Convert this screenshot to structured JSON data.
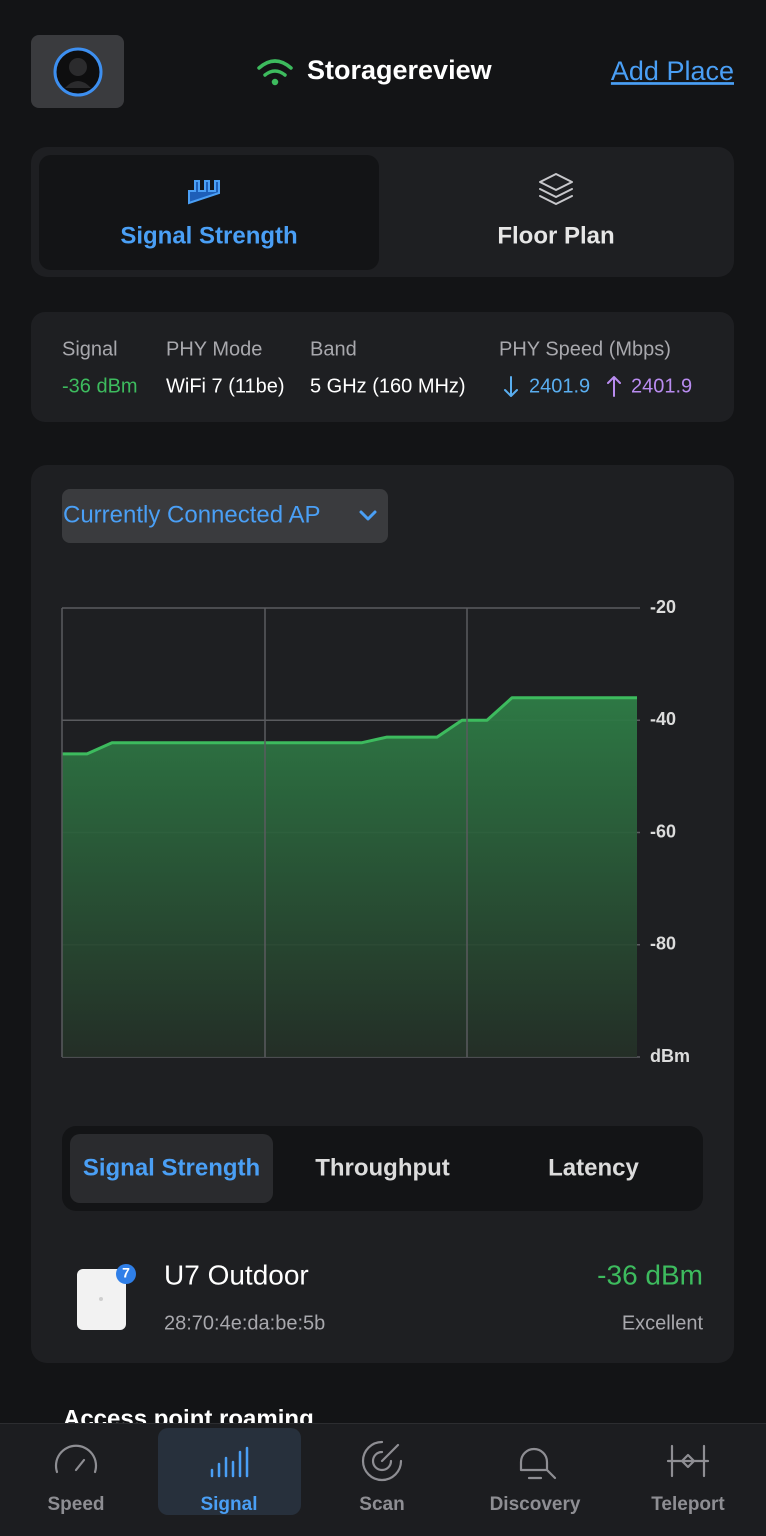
{
  "header": {
    "title": "Storagereview",
    "action": "Add Place"
  },
  "view_tabs": [
    {
      "label": "Signal Strength",
      "selected": true
    },
    {
      "label": "Floor Plan",
      "selected": false
    }
  ],
  "connection": {
    "fields": [
      {
        "label": "Signal",
        "value": "-36 dBm"
      },
      {
        "label": "PHY Mode",
        "value": "WiFi 7 (11be)"
      },
      {
        "label": "Band",
        "value": "5 GHz (160 MHz)"
      }
    ],
    "speed": {
      "label": "PHY Speed (Mbps)",
      "download": "2401.9",
      "upload": "2401.9"
    }
  },
  "ap_selector": "Currently Connected AP",
  "chart": {
    "type": "line",
    "values": [
      -46,
      -46,
      -44,
      -44,
      -44,
      -44,
      -44,
      -44,
      -44,
      -44,
      -44,
      -44,
      -44,
      -43,
      -43,
      -43,
      -40,
      -40,
      -36,
      -36,
      -36,
      -36,
      -36,
      -36
    ],
    "color": "#3dbb5e",
    "ylim": [
      -100,
      -20
    ],
    "yticks": [
      -20,
      -40,
      -60,
      -80,
      {
        "value": -100,
        "label": "dBm"
      }
    ],
    "grid": true
  },
  "metric_tabs": [
    {
      "label": "Signal Strength",
      "selected": true
    },
    {
      "label": "Throughput",
      "selected": false
    },
    {
      "label": "Latency",
      "selected": false
    }
  ],
  "device": {
    "name": "U7 Outdoor",
    "badge": "7",
    "mac": "28:70:4e:da:be:5b",
    "signal": "-36 dBm",
    "quality": "Excellent"
  },
  "section_title": "Access point roaming",
  "nav": [
    {
      "label": "Speed",
      "selected": false
    },
    {
      "label": "Signal",
      "selected": true
    },
    {
      "label": "Scan",
      "selected": false
    },
    {
      "label": "Discovery",
      "selected": false
    },
    {
      "label": "Teleport",
      "selected": false
    }
  ]
}
